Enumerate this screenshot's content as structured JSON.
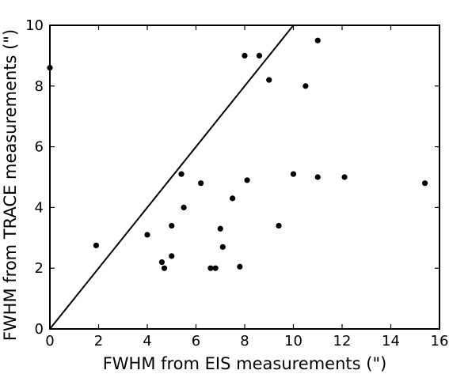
{
  "chart_data": {
    "type": "scatter",
    "title": "",
    "xlabel": "FWHM from EIS measurements (\")",
    "ylabel": "FWHM from TRACE measurements (\")",
    "xlim": [
      0,
      16
    ],
    "ylim": [
      0,
      10
    ],
    "xticks": [
      0,
      2,
      4,
      6,
      8,
      10,
      12,
      14,
      16
    ],
    "yticks": [
      0,
      2,
      4,
      6,
      8,
      10
    ],
    "x_tick_labels": [
      "0",
      "2",
      "4",
      "6",
      "8",
      "10",
      "12",
      "14",
      "16"
    ],
    "y_tick_labels": [
      "0",
      "2",
      "4",
      "6",
      "8",
      "10"
    ],
    "grid": false,
    "legend": "none",
    "reference_line": {
      "x": [
        0,
        10
      ],
      "y": [
        0,
        10
      ]
    },
    "points": [
      {
        "x": 0.0,
        "y": 8.6
      },
      {
        "x": 1.9,
        "y": 2.75
      },
      {
        "x": 4.0,
        "y": 3.1
      },
      {
        "x": 4.6,
        "y": 2.2
      },
      {
        "x": 4.7,
        "y": 2.0
      },
      {
        "x": 5.0,
        "y": 3.4
      },
      {
        "x": 5.0,
        "y": 2.4
      },
      {
        "x": 5.4,
        "y": 5.1
      },
      {
        "x": 5.5,
        "y": 4.0
      },
      {
        "x": 6.2,
        "y": 4.8
      },
      {
        "x": 6.6,
        "y": 2.0
      },
      {
        "x": 6.8,
        "y": 2.0
      },
      {
        "x": 7.0,
        "y": 3.3
      },
      {
        "x": 7.1,
        "y": 2.7
      },
      {
        "x": 7.5,
        "y": 4.3
      },
      {
        "x": 7.8,
        "y": 2.05
      },
      {
        "x": 8.0,
        "y": 9.0
      },
      {
        "x": 8.1,
        "y": 4.9
      },
      {
        "x": 8.6,
        "y": 9.0
      },
      {
        "x": 9.0,
        "y": 8.2
      },
      {
        "x": 9.4,
        "y": 3.4
      },
      {
        "x": 10.0,
        "y": 5.1
      },
      {
        "x": 10.5,
        "y": 8.0
      },
      {
        "x": 11.0,
        "y": 9.5
      },
      {
        "x": 11.0,
        "y": 5.0
      },
      {
        "x": 12.1,
        "y": 5.0
      },
      {
        "x": 15.4,
        "y": 4.8
      }
    ]
  }
}
